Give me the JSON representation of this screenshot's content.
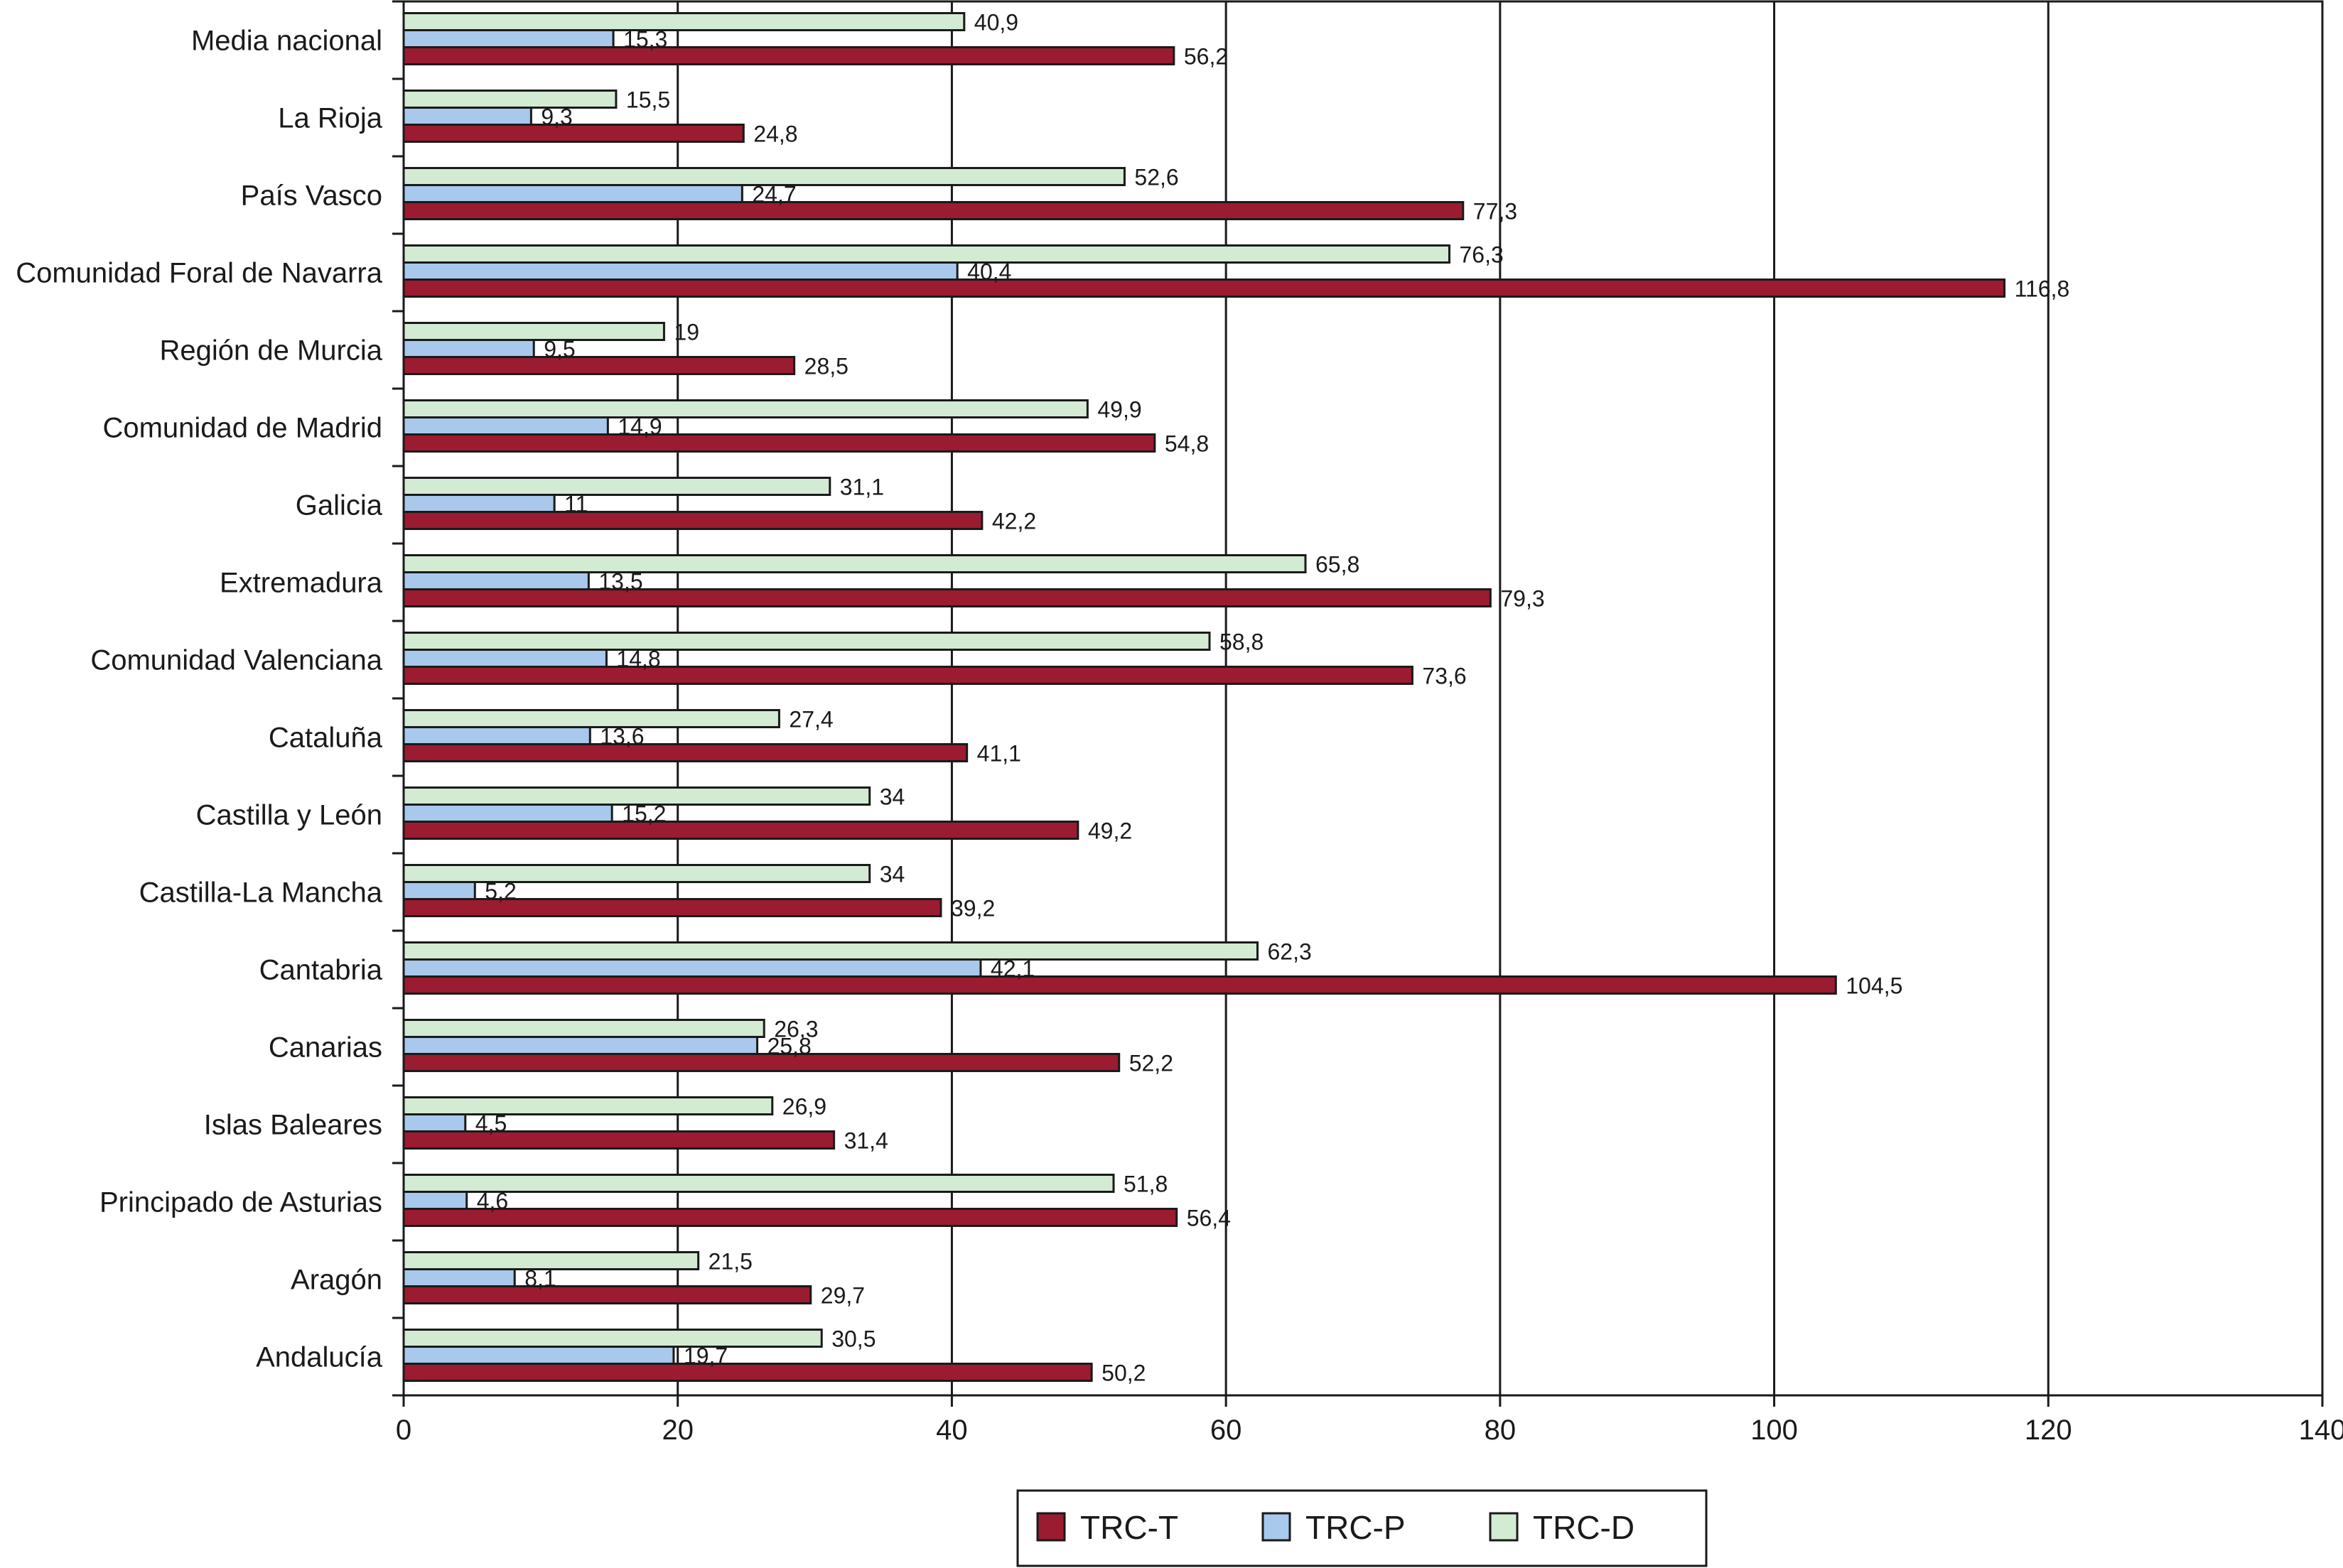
{
  "chart_data": {
    "type": "bar",
    "orientation": "horizontal",
    "categories": [
      "Media nacional",
      "La Rioja",
      "País Vasco",
      "Comunidad Foral de Navarra",
      "Región de Murcia",
      "Comunidad de Madrid",
      "Galicia",
      "Extremadura",
      "Comunidad Valenciana",
      "Cataluña",
      "Castilla y León",
      "Castilla-La Mancha",
      "Cantabria",
      "Canarias",
      "Islas Baleares",
      "Principado de Asturias",
      "Aragón",
      "Andalucía"
    ],
    "series": [
      {
        "name": "TRC-D",
        "color": "#d2ebd2",
        "values": [
          40.9,
          15.5,
          52.6,
          76.3,
          19,
          49.9,
          31.1,
          65.8,
          58.8,
          27.4,
          34,
          34,
          62.3,
          26.3,
          26.9,
          51.8,
          21.5,
          30.5
        ],
        "labels": [
          "40,9",
          "15,5",
          "52,6",
          "76,3",
          "19",
          "49,9",
          "31,1",
          "65,8",
          "58,8",
          "27,4",
          "34",
          "34",
          "62,3",
          "26,3",
          "26,9",
          "51,8",
          "21,5",
          "30,5"
        ]
      },
      {
        "name": "TRC-P",
        "color": "#a8c8ec",
        "values": [
          15.3,
          9.3,
          24.7,
          40.4,
          9.5,
          14.9,
          11,
          13.5,
          14.8,
          13.6,
          15.2,
          5.2,
          42.1,
          25.8,
          4.5,
          4.6,
          8.1,
          19.7
        ],
        "labels": [
          "15,3",
          "9,3",
          "24,7",
          "40,4",
          "9,5",
          "14,9",
          "11",
          "13,5",
          "14,8",
          "13,6",
          "15,2",
          "5,2",
          "42,1",
          "25,8",
          "4,5",
          "4,6",
          "8,1",
          "19,7"
        ]
      },
      {
        "name": "TRC-T",
        "color": "#9b1b30",
        "values": [
          56.2,
          24.8,
          77.3,
          116.8,
          28.5,
          54.8,
          42.2,
          79.3,
          73.6,
          41.1,
          49.2,
          39.2,
          104.5,
          52.2,
          31.4,
          56.4,
          29.7,
          50.2
        ],
        "labels": [
          "56,2",
          "24,8",
          "77,3",
          "116,8",
          "28,5",
          "54,8",
          "42,2",
          "79,3",
          "73,6",
          "41,1",
          "49,2",
          "39,2",
          "104,5",
          "52,2",
          "31,4",
          "56,4",
          "29,7",
          "50,2"
        ]
      }
    ],
    "legend": {
      "position": "bottom",
      "order": [
        "TRC-T",
        "TRC-P",
        "TRC-D"
      ]
    },
    "xlim": [
      0,
      140
    ],
    "xticks": [
      0,
      20,
      40,
      60,
      80,
      100,
      120,
      140
    ],
    "xtick_labels": [
      "0",
      "20",
      "40",
      "60",
      "80",
      "100",
      "120",
      "140"
    ],
    "grid": "vertical",
    "title": "",
    "xlabel": "",
    "ylabel": ""
  }
}
